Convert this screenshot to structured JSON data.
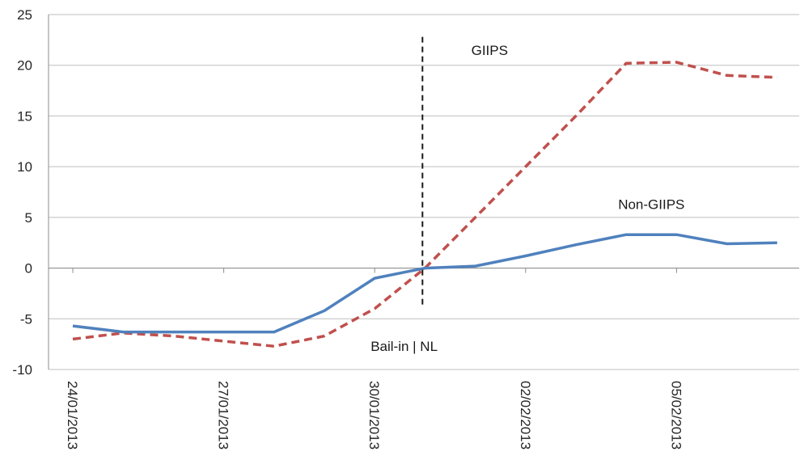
{
  "chart_data": {
    "type": "line",
    "title": "",
    "xlabel": "",
    "ylabel": "",
    "ylim": [
      -10,
      25
    ],
    "yticks": [
      -10,
      -5,
      0,
      5,
      10,
      15,
      20,
      25
    ],
    "grid": "horizontal",
    "x_ticks": [
      "24/01/2013",
      "27/01/2013",
      "30/01/2013",
      "02/02/2013",
      "05/02/2013"
    ],
    "x": [
      "24/01/2013",
      "25/01/2013",
      "26/01/2013",
      "27/01/2013",
      "28/01/2013",
      "29/01/2013",
      "30/01/2013",
      "31/01/2013",
      "01/02/2013",
      "02/02/2013",
      "03/02/2013",
      "04/02/2013",
      "05/02/2013",
      "06/02/2013",
      "07/02/2013"
    ],
    "series": [
      {
        "name": "GIIPS",
        "color": "#c0504d",
        "style": "dashed",
        "values": [
          -7.0,
          -6.4,
          -6.7,
          -7.2,
          -7.7,
          -6.7,
          -4.0,
          0.0,
          5.0,
          10.0,
          15.0,
          20.2,
          20.3,
          19.0,
          18.8
        ]
      },
      {
        "name": "Non-GIIPS",
        "color": "#4f81bd",
        "style": "solid",
        "values": [
          -5.7,
          -6.3,
          -6.3,
          -6.3,
          -6.3,
          -4.2,
          -1.0,
          0.0,
          0.2,
          1.2,
          2.3,
          3.3,
          3.3,
          2.4,
          2.5
        ]
      }
    ],
    "event_line": {
      "x_position_between": [
        "30/01/2013",
        "31/01/2013"
      ],
      "x_fraction": 0.95,
      "y_from": -3.8,
      "y_to": 22.8,
      "color": "#1a1a1a",
      "label": "Bail-in | NL"
    },
    "annotations": [
      {
        "text": "GIIPS",
        "near_series": "GIIPS",
        "x": "01/02/2013",
        "y": 21.5
      },
      {
        "text": "Non-GIIPS",
        "near_series": "Non-GIIPS",
        "x": "04/02/2013",
        "y": 6.3
      },
      {
        "text": "Bail-in | NL",
        "near_series": "event_line",
        "x": "30/01/2013",
        "y": -7.7
      }
    ]
  }
}
